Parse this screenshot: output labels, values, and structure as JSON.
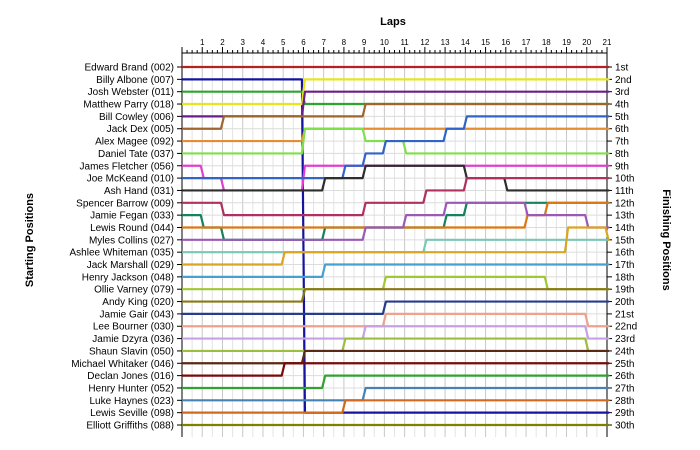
{
  "chart_data": {
    "type": "line",
    "title": "Laps",
    "ylabel_left": "Starting Positions",
    "ylabel_right": "Finishing Positions",
    "laps": [
      1,
      2,
      3,
      4,
      5,
      6,
      7,
      8,
      9,
      10,
      11,
      12,
      13,
      14,
      15,
      16,
      17,
      18,
      19,
      20,
      21
    ],
    "start_labels": [
      "Edward Brand (002)",
      "Billy Albone (007)",
      "Josh Webster (011)",
      "Matthew Parry (018)",
      "Bill Cowley (006)",
      "Jack Dex (005)",
      "Alex Magee (092)",
      "Daniel Tate (037)",
      "James Fletcher (056)",
      "Joe McKeand (010)",
      "Ash Hand (031)",
      "Spencer Barrow (009)",
      "Jamie Fegan (033)",
      "Lewis Round (044)",
      "Myles Collins (027)",
      "Ashlee Whiteman (035)",
      "Jack Marshall (029)",
      "Henry Jackson (048)",
      "Ollie Varney (079)",
      "Andy King (020)",
      "Jamie Gair (043)",
      "Lee Bourner (030)",
      "Jamie Dzyra (036)",
      "Shaun Slavin (050)",
      "Michael Whitaker (046)",
      "Declan Jones (016)",
      "Henry Hunter (052)",
      "Luke Haynes (023)",
      "Lewis Seville (098)",
      "Elliott Griffiths (088)"
    ],
    "finish_labels": [
      "1st",
      "2nd",
      "3rd",
      "4th",
      "5th",
      "6th",
      "7th",
      "8th",
      "9th",
      "10th",
      "11th",
      "12th",
      "13th",
      "14th",
      "15th",
      "16th",
      "17th",
      "18th",
      "19th",
      "20th",
      "21st",
      "22nd",
      "23rd",
      "24th",
      "25th",
      "26th",
      "27th",
      "28th",
      "29th",
      "30th"
    ],
    "series": [
      {
        "color": "#B22222",
        "values": [
          1,
          1,
          1,
          1,
          1,
          1,
          1,
          1,
          1,
          1,
          1,
          1,
          1,
          1,
          1,
          1,
          1,
          1,
          1,
          1,
          1,
          1
        ]
      },
      {
        "color": "#1414A0",
        "values": [
          2,
          2,
          2,
          2,
          2,
          2,
          29,
          29,
          29,
          29,
          29,
          29,
          29,
          29,
          29,
          29,
          29,
          29,
          29,
          29,
          29,
          29
        ]
      },
      {
        "color": "#2DA52D",
        "values": [
          3,
          3,
          3,
          3,
          3,
          3,
          4,
          4,
          4,
          4,
          4,
          4,
          4,
          4,
          4,
          4,
          4,
          4,
          4,
          4,
          4,
          4
        ]
      },
      {
        "color": "#E6E61E",
        "values": [
          4,
          4,
          4,
          4,
          4,
          4,
          2,
          2,
          2,
          2,
          2,
          2,
          2,
          2,
          2,
          2,
          2,
          2,
          2,
          2,
          2,
          2
        ]
      },
      {
        "color": "#6A1E8C",
        "values": [
          5,
          5,
          5,
          5,
          5,
          5,
          3,
          3,
          3,
          3,
          3,
          3,
          3,
          3,
          3,
          3,
          3,
          3,
          3,
          3,
          3,
          3
        ]
      },
      {
        "color": "#A0642D",
        "values": [
          6,
          6,
          5,
          5,
          5,
          5,
          5,
          5,
          5,
          4,
          4,
          4,
          4,
          4,
          4,
          4,
          4,
          4,
          4,
          4,
          4,
          4
        ]
      },
      {
        "color": "#E68C32",
        "values": [
          7,
          7,
          7,
          7,
          7,
          7,
          6,
          6,
          6,
          6,
          6,
          6,
          6,
          6,
          6,
          6,
          6,
          6,
          6,
          6,
          6,
          6
        ]
      },
      {
        "color": "#7FE04A",
        "values": [
          8,
          8,
          8,
          8,
          8,
          8,
          6,
          6,
          6,
          7,
          7,
          8,
          8,
          8,
          8,
          8,
          8,
          8,
          8,
          8,
          8,
          8
        ]
      },
      {
        "color": "#E040D0",
        "values": [
          9,
          10,
          11,
          11,
          11,
          11,
          9,
          9,
          9,
          9,
          9,
          9,
          9,
          9,
          9,
          9,
          9,
          9,
          9,
          9,
          9,
          9
        ]
      },
      {
        "color": "#3264C8",
        "values": [
          10,
          10,
          10,
          10,
          10,
          10,
          10,
          10,
          9,
          8,
          7,
          7,
          7,
          6,
          5,
          5,
          5,
          5,
          5,
          5,
          5,
          5
        ]
      },
      {
        "color": "#2E2E2E",
        "values": [
          11,
          11,
          11,
          11,
          11,
          11,
          11,
          10,
          10,
          9,
          9,
          9,
          9,
          9,
          10,
          10,
          11,
          11,
          11,
          11,
          11,
          11
        ]
      },
      {
        "color": "#B03060",
        "values": [
          12,
          12,
          13,
          13,
          13,
          13,
          13,
          13,
          13,
          12,
          12,
          12,
          11,
          11,
          10,
          10,
          10,
          10,
          10,
          10,
          10,
          10
        ]
      },
      {
        "color": "#14825A",
        "values": [
          13,
          14,
          15,
          15,
          15,
          15,
          15,
          14,
          14,
          14,
          14,
          14,
          14,
          13,
          12,
          12,
          12,
          12,
          12,
          12,
          12,
          12
        ]
      },
      {
        "color": "#DC7814",
        "values": [
          14,
          14,
          14,
          14,
          14,
          14,
          14,
          14,
          14,
          14,
          14,
          14,
          14,
          14,
          14,
          14,
          14,
          13,
          12,
          12,
          12,
          12
        ]
      },
      {
        "color": "#9B59B6",
        "values": [
          15,
          15,
          15,
          15,
          15,
          15,
          15,
          15,
          15,
          14,
          14,
          13,
          13,
          12,
          12,
          12,
          12,
          13,
          13,
          13,
          14,
          14
        ]
      },
      {
        "color": "#78C8B4",
        "values": [
          16,
          16,
          16,
          16,
          16,
          16,
          16,
          16,
          16,
          16,
          16,
          16,
          15,
          15,
          15,
          15,
          15,
          15,
          15,
          15,
          15,
          15
        ]
      },
      {
        "color": "#DAA520",
        "values": [
          17,
          17,
          17,
          17,
          17,
          16,
          16,
          16,
          16,
          16,
          16,
          16,
          16,
          16,
          16,
          16,
          16,
          16,
          16,
          14,
          14,
          15
        ]
      },
      {
        "color": "#46A0D2",
        "values": [
          18,
          18,
          18,
          18,
          18,
          18,
          18,
          17,
          17,
          17,
          17,
          17,
          17,
          17,
          17,
          17,
          17,
          17,
          17,
          17,
          17,
          17
        ]
      },
      {
        "color": "#A0C832",
        "values": [
          19,
          19,
          19,
          19,
          19,
          19,
          19,
          19,
          19,
          19,
          18,
          18,
          18,
          18,
          18,
          18,
          18,
          18,
          19,
          19,
          19,
          19
        ]
      },
      {
        "color": "#8B7814",
        "values": [
          20,
          20,
          20,
          20,
          20,
          20,
          19,
          19,
          19,
          19,
          19,
          19,
          19,
          19,
          19,
          19,
          19,
          19,
          19,
          19,
          19,
          19
        ]
      },
      {
        "color": "#283C8C",
        "values": [
          21,
          21,
          21,
          21,
          21,
          21,
          21,
          21,
          21,
          21,
          20,
          20,
          20,
          20,
          20,
          20,
          20,
          20,
          20,
          20,
          20,
          20
        ]
      },
      {
        "color": "#F0A08C",
        "values": [
          22,
          22,
          22,
          22,
          22,
          22,
          22,
          22,
          22,
          22,
          21,
          21,
          21,
          21,
          21,
          21,
          21,
          21,
          21,
          21,
          22,
          22
        ]
      },
      {
        "color": "#C8A0E6",
        "values": [
          23,
          23,
          23,
          23,
          23,
          23,
          23,
          23,
          23,
          22,
          22,
          22,
          22,
          22,
          22,
          22,
          22,
          22,
          22,
          22,
          23,
          23
        ]
      },
      {
        "color": "#9BBE3C",
        "values": [
          24,
          24,
          24,
          24,
          24,
          24,
          24,
          24,
          23,
          23,
          23,
          23,
          23,
          23,
          23,
          23,
          23,
          23,
          23,
          23,
          24,
          24
        ]
      },
      {
        "color": "#5A2814",
        "values": [
          25,
          25,
          25,
          25,
          25,
          25,
          24,
          24,
          24,
          24,
          24,
          24,
          24,
          24,
          24,
          24,
          24,
          24,
          24,
          24,
          24,
          24
        ]
      },
      {
        "color": "#780A0A",
        "values": [
          26,
          26,
          26,
          26,
          26,
          25,
          25,
          25,
          25,
          25,
          25,
          25,
          25,
          25,
          25,
          25,
          25,
          25,
          25,
          25,
          25,
          25
        ]
      },
      {
        "color": "#32A032",
        "values": [
          27,
          27,
          27,
          27,
          27,
          27,
          27,
          26,
          26,
          26,
          26,
          26,
          26,
          26,
          26,
          26,
          26,
          26,
          26,
          26,
          26,
          26
        ]
      },
      {
        "color": "#4682B4",
        "values": [
          28,
          28,
          28,
          28,
          28,
          28,
          28,
          28,
          28,
          27,
          27,
          27,
          27,
          27,
          27,
          27,
          27,
          27,
          27,
          27,
          27,
          27
        ]
      },
      {
        "color": "#D2691E",
        "values": [
          29,
          29,
          29,
          29,
          29,
          29,
          29,
          29,
          28,
          28,
          28,
          28,
          28,
          28,
          28,
          28,
          28,
          28,
          28,
          28,
          28,
          28
        ]
      },
      {
        "color": "#808000",
        "values": [
          30,
          30,
          30,
          30,
          30,
          30,
          30,
          30,
          30,
          30,
          30,
          30,
          30,
          30,
          30,
          30,
          30,
          30,
          30,
          30,
          30,
          30
        ]
      }
    ]
  }
}
